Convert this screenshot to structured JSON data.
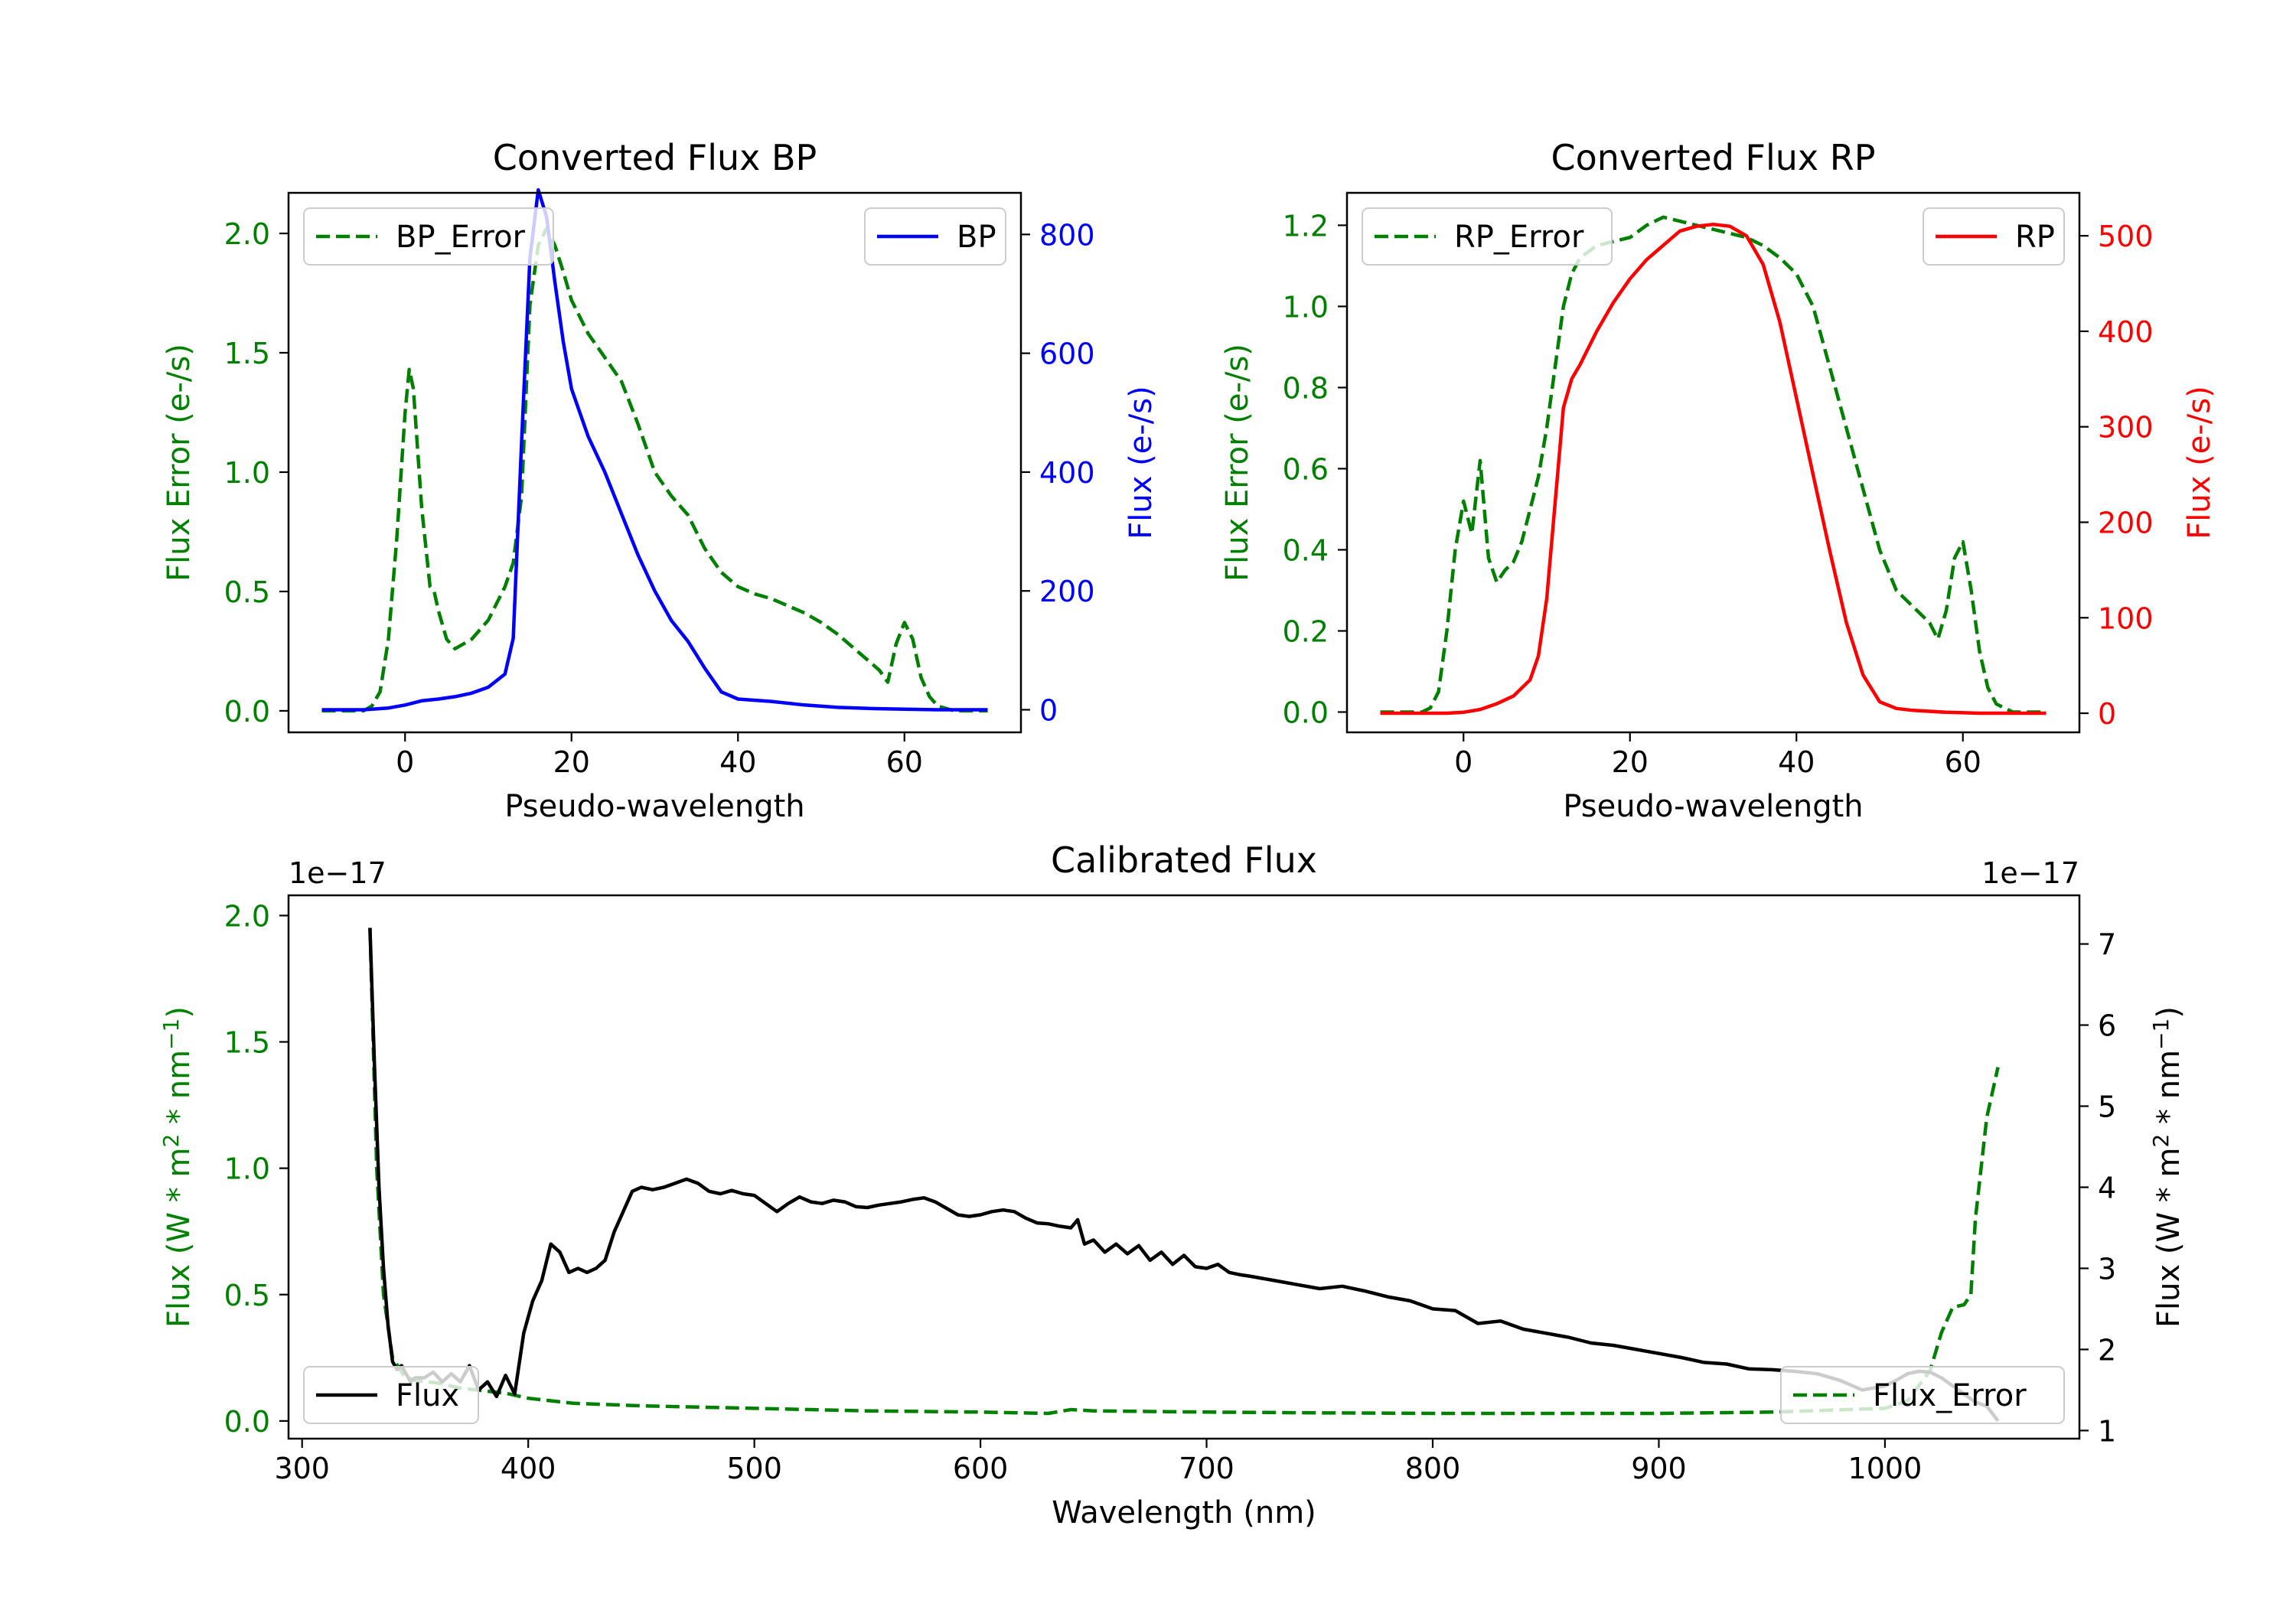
{
  "colors": {
    "green": "#008000",
    "blue": "#0000ff",
    "red": "#ff0000",
    "black": "#000000"
  },
  "chart_data": [
    {
      "id": "bp",
      "type": "line",
      "title": "Converted Flux BP",
      "xlabel": "Pseudo-wavelength",
      "ylabel_left": "Flux Error (e-/s)",
      "ylabel_right": "Flux (e-/s)",
      "xlim": [
        -14,
        74
      ],
      "ylim_left": [
        -0.09,
        2.17
      ],
      "ylim_right": [
        -38,
        870
      ],
      "xticks": [
        0,
        20,
        40,
        60
      ],
      "yticks_left": [
        0.0,
        0.5,
        1.0,
        1.5,
        2.0
      ],
      "yticks_right": [
        0,
        200,
        400,
        600,
        800
      ],
      "series": [
        {
          "name": "BP_Error",
          "axis": "left",
          "color": "green",
          "style": "dashed",
          "x": [
            -10,
            -5,
            -4,
            -3,
            -2,
            -1,
            0,
            0.5,
            1,
            2,
            3,
            3.5,
            4,
            5,
            6,
            7,
            8,
            10,
            12,
            13,
            14,
            15,
            16,
            17,
            18,
            19,
            20,
            22,
            24,
            26,
            28,
            30,
            32,
            34,
            36,
            38,
            40,
            42,
            44,
            46,
            48,
            50,
            52,
            54,
            56,
            57,
            58,
            59,
            60,
            61,
            62,
            63,
            64,
            66,
            68,
            70
          ],
          "y": [
            0,
            0,
            0.02,
            0.08,
            0.3,
            0.72,
            1.25,
            1.43,
            1.35,
            0.85,
            0.52,
            0.5,
            0.42,
            0.3,
            0.26,
            0.28,
            0.3,
            0.38,
            0.52,
            0.62,
            0.9,
            1.7,
            1.95,
            2.02,
            1.95,
            1.84,
            1.72,
            1.58,
            1.48,
            1.38,
            1.2,
            1.0,
            0.9,
            0.82,
            0.68,
            0.58,
            0.52,
            0.49,
            0.47,
            0.44,
            0.41,
            0.37,
            0.32,
            0.26,
            0.2,
            0.17,
            0.12,
            0.28,
            0.37,
            0.3,
            0.14,
            0.06,
            0.02,
            0,
            0,
            0
          ]
        },
        {
          "name": "BP",
          "axis": "right",
          "color": "blue",
          "style": "solid",
          "x": [
            -10,
            -5,
            -2,
            0,
            2,
            4,
            6,
            8,
            10,
            12,
            13,
            14,
            15,
            16,
            17,
            18,
            19,
            20,
            22,
            24,
            26,
            28,
            30,
            32,
            34,
            36,
            38,
            40,
            44,
            48,
            52,
            56,
            60,
            64,
            70
          ],
          "y": [
            0,
            0,
            3,
            8,
            15,
            18,
            22,
            28,
            38,
            60,
            120,
            450,
            760,
            875,
            830,
            720,
            620,
            540,
            460,
            400,
            330,
            260,
            200,
            150,
            115,
            70,
            30,
            18,
            14,
            8,
            4,
            2,
            1,
            0,
            0
          ]
        }
      ],
      "legends": [
        {
          "label": "BP_Error",
          "placement": "upper left"
        },
        {
          "label": "BP",
          "placement": "upper right"
        }
      ]
    },
    {
      "id": "rp",
      "type": "line",
      "title": "Converted Flux RP",
      "xlabel": "Pseudo-wavelength",
      "ylabel_left": "Flux Error (e-/s)",
      "ylabel_right": "Flux (e-/s)",
      "xlim": [
        -14,
        74
      ],
      "ylim_left": [
        -0.05,
        1.28
      ],
      "ylim_right": [
        -20,
        545
      ],
      "xticks": [
        0,
        20,
        40,
        60
      ],
      "yticks_left": [
        0.0,
        0.2,
        0.4,
        0.6,
        0.8,
        1.0,
        1.2
      ],
      "yticks_right": [
        0,
        100,
        200,
        300,
        400,
        500
      ],
      "series": [
        {
          "name": "RP_Error",
          "axis": "left",
          "color": "green",
          "style": "dashed",
          "x": [
            -10,
            -5,
            -4,
            -3,
            -2,
            -1,
            0,
            1,
            2,
            3,
            4,
            5,
            6,
            7,
            8,
            9,
            10,
            11,
            12,
            13,
            14,
            16,
            18,
            20,
            22,
            24,
            26,
            28,
            30,
            32,
            34,
            36,
            38,
            40,
            42,
            44,
            46,
            48,
            50,
            52,
            54,
            56,
            57,
            58,
            59,
            60,
            61,
            62,
            63,
            64,
            66,
            68,
            70
          ],
          "y": [
            0,
            0,
            0.01,
            0.05,
            0.2,
            0.4,
            0.52,
            0.44,
            0.62,
            0.38,
            0.32,
            0.35,
            0.37,
            0.42,
            0.5,
            0.58,
            0.7,
            0.85,
            1.0,
            1.08,
            1.12,
            1.15,
            1.16,
            1.17,
            1.2,
            1.22,
            1.21,
            1.2,
            1.19,
            1.18,
            1.17,
            1.15,
            1.12,
            1.08,
            1.0,
            0.85,
            0.7,
            0.55,
            0.4,
            0.3,
            0.26,
            0.22,
            0.18,
            0.25,
            0.38,
            0.42,
            0.3,
            0.15,
            0.06,
            0.02,
            0,
            0,
            0
          ]
        },
        {
          "name": "RP",
          "axis": "right",
          "color": "red",
          "style": "solid",
          "x": [
            -10,
            -5,
            -2,
            0,
            2,
            4,
            6,
            8,
            9,
            10,
            11,
            12,
            13,
            14,
            16,
            18,
            20,
            22,
            24,
            26,
            28,
            30,
            32,
            34,
            36,
            38,
            40,
            42,
            44,
            46,
            48,
            50,
            52,
            54,
            58,
            62,
            66,
            70
          ],
          "y": [
            0,
            0,
            0,
            1,
            4,
            10,
            18,
            35,
            60,
            120,
            220,
            320,
            350,
            365,
            400,
            430,
            455,
            475,
            490,
            505,
            510,
            512,
            510,
            500,
            470,
            410,
            330,
            250,
            170,
            95,
            40,
            12,
            5,
            3,
            1,
            0,
            0,
            0
          ]
        }
      ],
      "legends": [
        {
          "label": "RP_Error",
          "placement": "upper left"
        },
        {
          "label": "RP",
          "placement": "upper right"
        }
      ]
    },
    {
      "id": "cal",
      "type": "line",
      "title": "Calibrated Flux",
      "xlabel": "Wavelength (nm)",
      "ylabel_left": "Flux (W * m^2 * nm^-1)",
      "ylabel_right": "Flux (W * m^2 * nm^-1)",
      "offset_left": "1e−17",
      "offset_right": "1e−17",
      "xlim": [
        294,
        1086
      ],
      "ylim_left": [
        -0.07,
        2.08
      ],
      "ylim_right": [
        0.9,
        7.6
      ],
      "xticks": [
        300,
        400,
        500,
        600,
        700,
        800,
        900,
        1000
      ],
      "yticks_left": [
        0.0,
        0.5,
        1.0,
        1.5,
        2.0
      ],
      "yticks_right": [
        1,
        2,
        3,
        4,
        5,
        6,
        7
      ],
      "series": [
        {
          "name": "Flux_Error",
          "axis": "left",
          "color": "green",
          "style": "dashed",
          "x": [
            330,
            333,
            336,
            340,
            345,
            350,
            360,
            370,
            380,
            390,
            400,
            420,
            450,
            500,
            550,
            600,
            630,
            640,
            650,
            700,
            750,
            800,
            850,
            900,
            950,
            1000,
            1010,
            1020,
            1025,
            1030,
            1035,
            1038,
            1040,
            1045,
            1050
          ],
          "y": [
            1.95,
            1.0,
            0.5,
            0.25,
            0.18,
            0.16,
            0.15,
            0.13,
            0.12,
            0.11,
            0.09,
            0.07,
            0.06,
            0.05,
            0.04,
            0.035,
            0.03,
            0.045,
            0.04,
            0.035,
            0.032,
            0.03,
            0.03,
            0.03,
            0.035,
            0.05,
            0.08,
            0.2,
            0.35,
            0.45,
            0.46,
            0.5,
            0.8,
            1.2,
            1.4
          ]
        },
        {
          "name": "Flux",
          "axis": "right",
          "color": "black",
          "style": "solid",
          "x": [
            330,
            332,
            334,
            336,
            338,
            340,
            342,
            344,
            346,
            348,
            350,
            354,
            358,
            362,
            366,
            370,
            374,
            378,
            382,
            386,
            390,
            394,
            398,
            402,
            406,
            410,
            414,
            418,
            422,
            426,
            430,
            434,
            438,
            442,
            446,
            450,
            455,
            460,
            465,
            470,
            475,
            480,
            485,
            490,
            495,
            500,
            505,
            510,
            515,
            520,
            525,
            530,
            535,
            540,
            545,
            550,
            555,
            560,
            565,
            570,
            575,
            580,
            585,
            590,
            595,
            600,
            605,
            610,
            615,
            620,
            625,
            630,
            635,
            640,
            643,
            646,
            650,
            655,
            660,
            665,
            670,
            675,
            680,
            685,
            690,
            695,
            700,
            705,
            710,
            715,
            720,
            730,
            740,
            750,
            760,
            770,
            780,
            790,
            800,
            810,
            820,
            830,
            840,
            850,
            860,
            870,
            880,
            890,
            900,
            910,
            920,
            930,
            940,
            950,
            960,
            970,
            980,
            990,
            1000,
            1005,
            1010,
            1015,
            1020,
            1025,
            1030,
            1035,
            1040,
            1045,
            1050
          ],
          "y": [
            7.2,
            5.5,
            4.0,
            3.0,
            2.3,
            1.85,
            1.75,
            1.8,
            1.7,
            1.6,
            1.65,
            1.65,
            1.72,
            1.6,
            1.7,
            1.6,
            1.8,
            1.5,
            1.6,
            1.42,
            1.68,
            1.45,
            2.2,
            2.6,
            2.85,
            3.3,
            3.2,
            2.95,
            3.0,
            2.95,
            3.0,
            3.1,
            3.45,
            3.7,
            3.95,
            4.0,
            3.97,
            4.0,
            4.05,
            4.1,
            4.05,
            3.95,
            3.92,
            3.96,
            3.92,
            3.9,
            3.8,
            3.7,
            3.8,
            3.88,
            3.82,
            3.8,
            3.84,
            3.82,
            3.76,
            3.75,
            3.78,
            3.8,
            3.82,
            3.85,
            3.87,
            3.82,
            3.74,
            3.66,
            3.64,
            3.66,
            3.7,
            3.72,
            3.7,
            3.62,
            3.56,
            3.55,
            3.52,
            3.5,
            3.6,
            3.3,
            3.35,
            3.2,
            3.3,
            3.18,
            3.28,
            3.1,
            3.2,
            3.05,
            3.16,
            3.02,
            3.0,
            3.05,
            2.95,
            2.92,
            2.9,
            2.85,
            2.8,
            2.75,
            2.78,
            2.72,
            2.65,
            2.6,
            2.5,
            2.48,
            2.32,
            2.35,
            2.25,
            2.2,
            2.15,
            2.08,
            2.05,
            2.0,
            1.95,
            1.9,
            1.84,
            1.82,
            1.76,
            1.75,
            1.73,
            1.7,
            1.62,
            1.5,
            1.55,
            1.62,
            1.7,
            1.73,
            1.72,
            1.65,
            1.55,
            1.45,
            1.35,
            1.3,
            1.12
          ]
        }
      ],
      "legends": [
        {
          "label": "Flux",
          "placement": "lower left"
        },
        {
          "label": "Flux_Error",
          "placement": "lower right"
        }
      ]
    }
  ]
}
